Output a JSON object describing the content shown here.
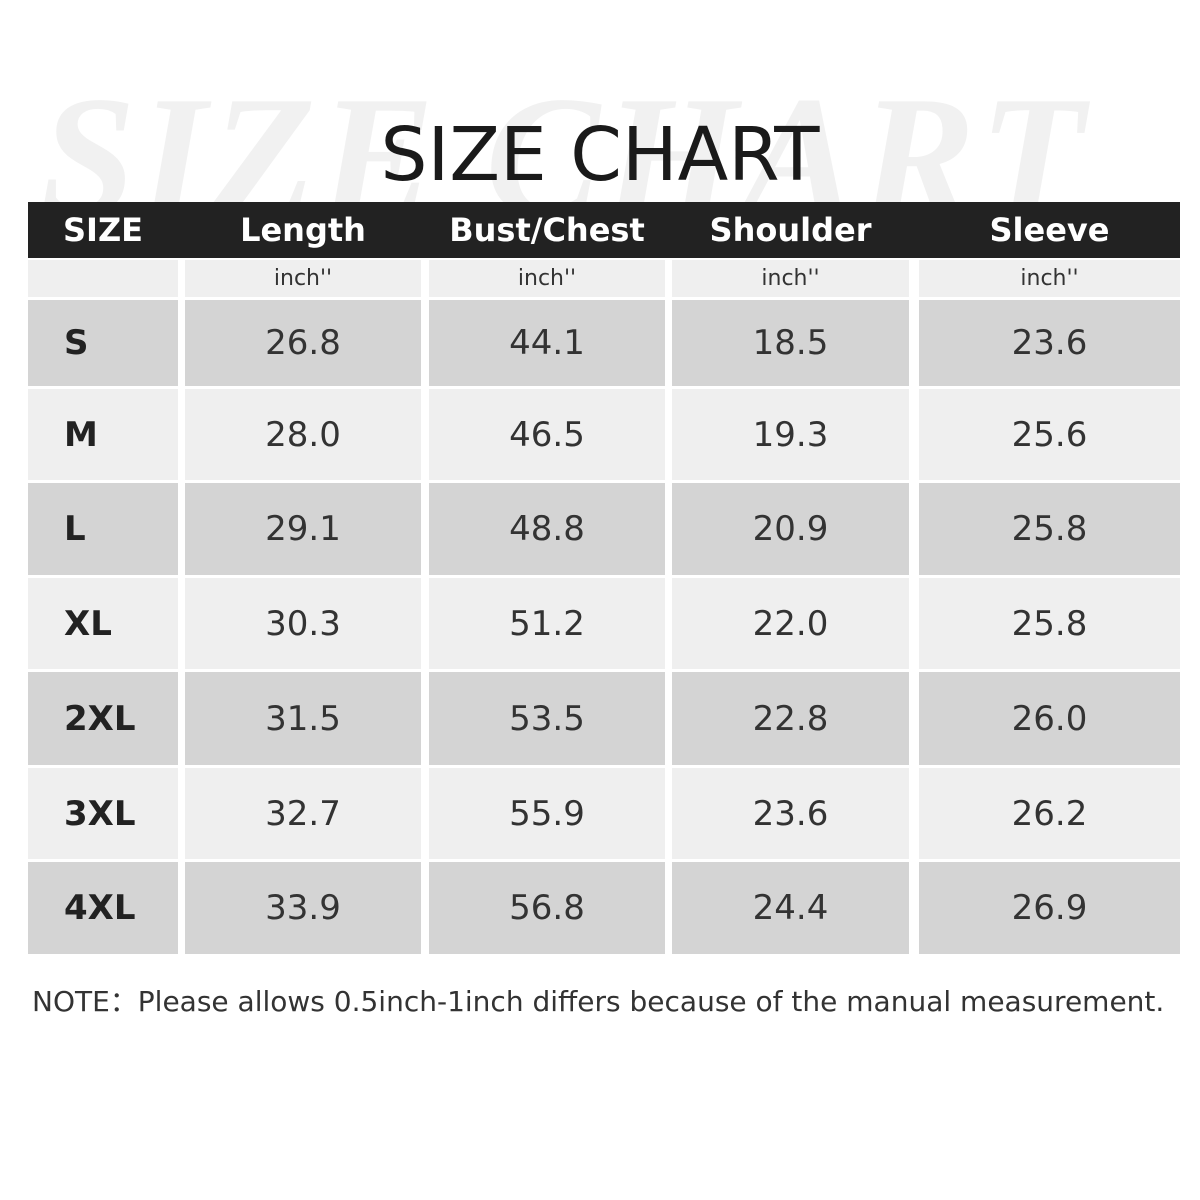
{
  "watermark": "SIZE CHART",
  "title": "SIZE CHART",
  "table": {
    "header": [
      "SIZE",
      "Length",
      "Bust/Chest",
      "Shoulder",
      "Sleeve"
    ],
    "units": [
      "inch''",
      "inch''",
      "inch''",
      "inch''"
    ],
    "rows": [
      [
        "S",
        "26.8",
        "44.1",
        "18.5",
        "23.6"
      ],
      [
        "M",
        "28.0",
        "46.5",
        "19.3",
        "25.6"
      ],
      [
        "L",
        "29.1",
        "48.8",
        "20.9",
        "25.8"
      ],
      [
        "XL",
        "30.3",
        "51.2",
        "22.0",
        "25.8"
      ],
      [
        "2XL",
        "31.5",
        "53.5",
        "22.8",
        "26.0"
      ],
      [
        "3XL",
        "32.7",
        "55.9",
        "23.6",
        "26.2"
      ],
      [
        "4XL",
        "33.9",
        "56.8",
        "24.4",
        "26.9"
      ]
    ]
  },
  "note": "NOTE：Please allows 0.5inch-1inch differs because of the manual measurement."
}
